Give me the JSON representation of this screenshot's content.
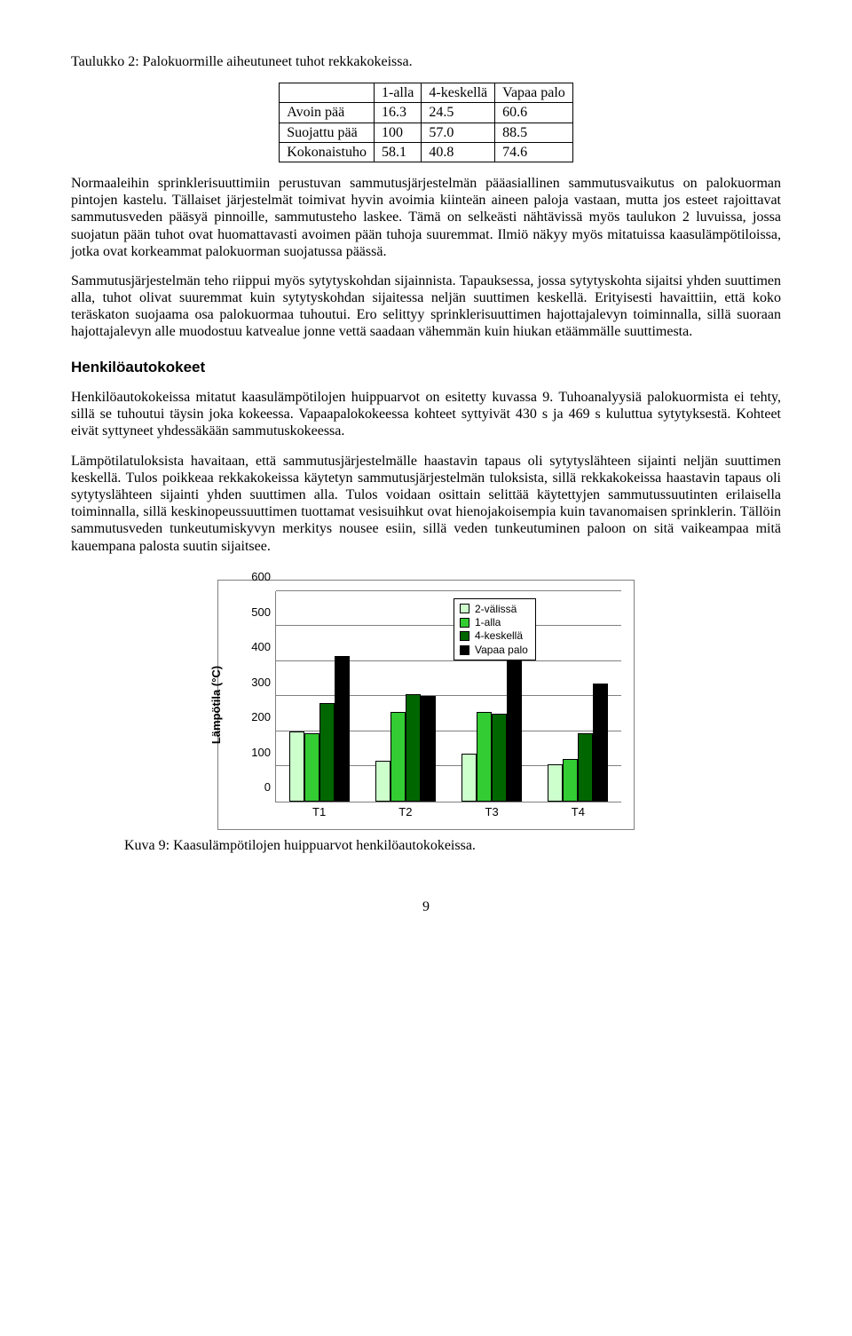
{
  "table_caption": "Taulukko 2: Palokuormille aiheutuneet tuhot rekkakokeissa.",
  "table": {
    "columns": [
      "",
      "1-alla",
      "4-keskellä",
      "Vapaa palo"
    ],
    "rows": [
      [
        "Avoin pää",
        "16.3",
        "24.5",
        "60.6"
      ],
      [
        "Suojattu pää",
        "100",
        "57.0",
        "88.5"
      ],
      [
        "Kokonaistuho",
        "58.1",
        "40.8",
        "74.6"
      ]
    ]
  },
  "para1": "Normaaleihin sprinklerisuuttimiin perustuvan sammutusjärjestelmän pääasiallinen sammutusvaikutus on palokuorman pintojen kastelu. Tällaiset järjestelmät toimivat hyvin avoimia kiinteän aineen paloja vastaan, mutta jos esteet rajoittavat sammutusveden pääsyä pinnoille, sammutusteho laskee. Tämä on selkeästi nähtävissä myös taulukon 2 luvuissa, jossa suojatun pään tuhot ovat huomattavasti avoimen pään tuhoja suuremmat. Ilmiö näkyy myös mitatuissa kaasulämpötiloissa, jotka ovat korkeammat palokuorman suojatussa päässä.",
  "para2": "Sammutusjärjestelmän teho riippui myös sytytyskohdan sijainnista. Tapauksessa, jossa sytytyskohta sijaitsi yhden suuttimen alla, tuhot olivat suuremmat kuin sytytyskohdan sijaitessa neljän suuttimen keskellä. Erityisesti havaittiin, että koko teräskaton suojaama osa palokuormaa tuhoutui. Ero selittyy sprinklerisuuttimen hajottajalevyn toiminnalla, sillä suoraan hajottajalevyn alle muodostuu katvealue jonne vettä saadaan vähemmän kuin hiukan etäämmälle suuttimesta.",
  "section_heading": "Henkilöautokokeet",
  "para3": "Henkilöautokokeissa mitatut kaasulämpötilojen huippuarvot on esitetty kuvassa 9. Tuhoanalyysiä palokuormista ei tehty, sillä se tuhoutui täysin joka kokeessa. Vapaapalokokeessa kohteet syttyivät 430 s ja 469 s kuluttua sytytyksestä. Kohteet eivät syttyneet yhdessäkään sammutuskokeessa.",
  "para4": "Lämpötilatuloksista havaitaan, että sammutusjärjestelmälle haastavin tapaus oli sytytyslähteen sijainti neljän suuttimen keskellä. Tulos poikkeaa rekkakokeissa käytetyn sammutusjärjestelmän tuloksista, sillä rekkakokeissa haastavin tapaus oli sytytyslähteen sijainti yhden suuttimen alla. Tulos voidaan osittain selittää käytettyjen sammutussuutinten erilaisella toiminnalla, sillä keskinopeussuuttimen tuottamat vesisuihkut ovat hienojakoisempia kuin tavanomaisen sprinklerin. Tällöin sammutusveden tunkeutumiskyvyn merkitys nousee esiin, sillä veden tunkeutuminen paloon on sitä vaikeampaa mitä kauempana palosta suutin sijaitsee.",
  "chart": {
    "type": "bar",
    "ylabel": "Lämpötila (°C)",
    "ylim": [
      0,
      600
    ],
    "ytick_step": 100,
    "yticks": [
      0,
      100,
      200,
      300,
      400,
      500,
      600
    ],
    "categories": [
      "T1",
      "T2",
      "T3",
      "T4"
    ],
    "series": [
      {
        "name": "2-välissä",
        "color": "#ccffcc",
        "values": [
          200,
          115,
          135,
          105
        ]
      },
      {
        "name": "1-alla",
        "color": "#33cc33",
        "values": [
          195,
          255,
          255,
          120
        ]
      },
      {
        "name": "4-keskellä",
        "color": "#006600",
        "values": [
          280,
          305,
          250,
          195
        ]
      },
      {
        "name": "Vapaa palo",
        "color": "#000000",
        "values": [
          415,
          300,
          520,
          335
        ]
      }
    ],
    "background_color": "#ffffff",
    "grid_color": "#808080",
    "label_fontsize": 13
  },
  "fig_caption": "Kuva 9: Kaasulämpötilojen huippuarvot henkilöautokokeissa.",
  "page_number": "9"
}
